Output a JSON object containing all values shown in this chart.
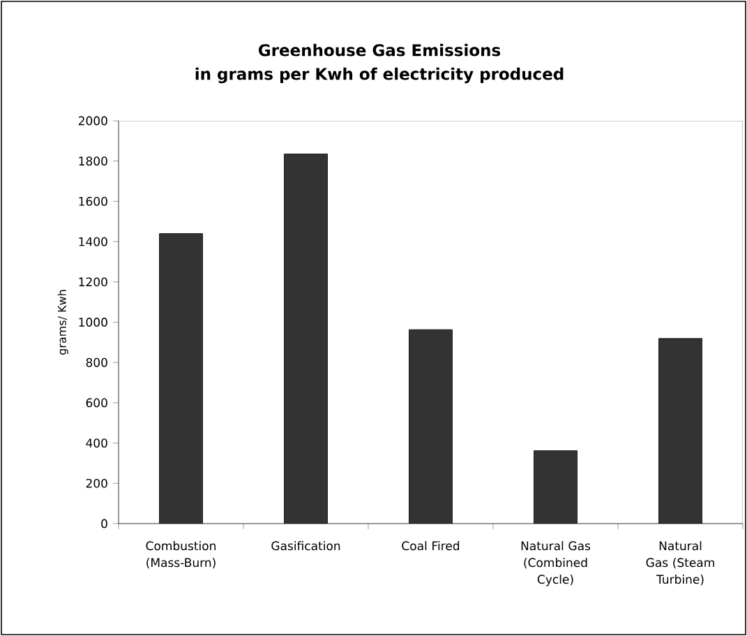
{
  "chart_data": {
    "type": "bar",
    "title": "Greenhouse Gas Emissions",
    "subtitle": "in grams per Kwh of electricity produced",
    "ylabel": "grams/ Kwh",
    "categories": [
      "Combustion (Mass-Burn)",
      "Gasification",
      "Coal Fired",
      "Natural Gas (Combined Cycle)",
      "Natural Gas (Steam Turbine)"
    ],
    "values": [
      1440,
      1835,
      963,
      362,
      919
    ],
    "color": "#333333",
    "ylim": [
      0,
      2000
    ],
    "yticks": [
      0,
      200,
      400,
      600,
      800,
      1000,
      1200,
      1400,
      1600,
      1800,
      2000
    ],
    "grid": false
  }
}
